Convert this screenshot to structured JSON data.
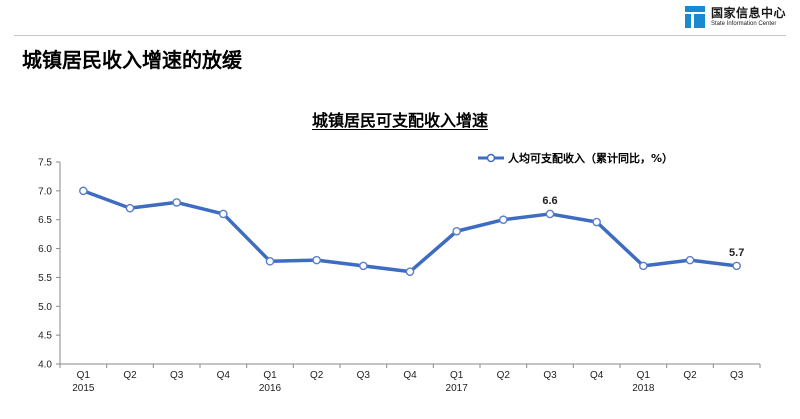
{
  "header": {
    "logo_cn": "国家信息中心",
    "logo_en": "State Information Center",
    "page_title": "城镇居民收入增速的放缓"
  },
  "colors": {
    "series": "#3d6cc0",
    "logo": "#1a8ad0"
  },
  "chart_data": {
    "type": "line",
    "title": "城镇居民可支配收入增速",
    "xlabel": "",
    "ylabel": "",
    "ylim": [
      4.0,
      7.5
    ],
    "yticks": [
      "4.0",
      "4.5",
      "5.0",
      "5.5",
      "6.0",
      "6.5",
      "7.0",
      "7.5"
    ],
    "grid": false,
    "legend_position": "top-right",
    "categories": [
      "Q1",
      "Q2",
      "Q3",
      "Q4",
      "Q1",
      "Q2",
      "Q3",
      "Q4",
      "Q1",
      "Q2",
      "Q3",
      "Q4",
      "Q1",
      "Q2",
      "Q3"
    ],
    "years": [
      {
        "label": "2015",
        "index": 0
      },
      {
        "label": "2016",
        "index": 4
      },
      {
        "label": "2017",
        "index": 8
      },
      {
        "label": "2018",
        "index": 12
      }
    ],
    "series": [
      {
        "name": "人均可支配收入（累计同比，%）",
        "values": [
          7.0,
          6.7,
          6.8,
          6.6,
          5.78,
          5.8,
          5.7,
          5.6,
          6.3,
          6.5,
          6.6,
          6.46,
          5.7,
          5.8,
          5.7
        ]
      }
    ],
    "annotations": [
      {
        "index": 10,
        "text": "6.6"
      },
      {
        "index": 14,
        "text": "5.7"
      }
    ]
  }
}
